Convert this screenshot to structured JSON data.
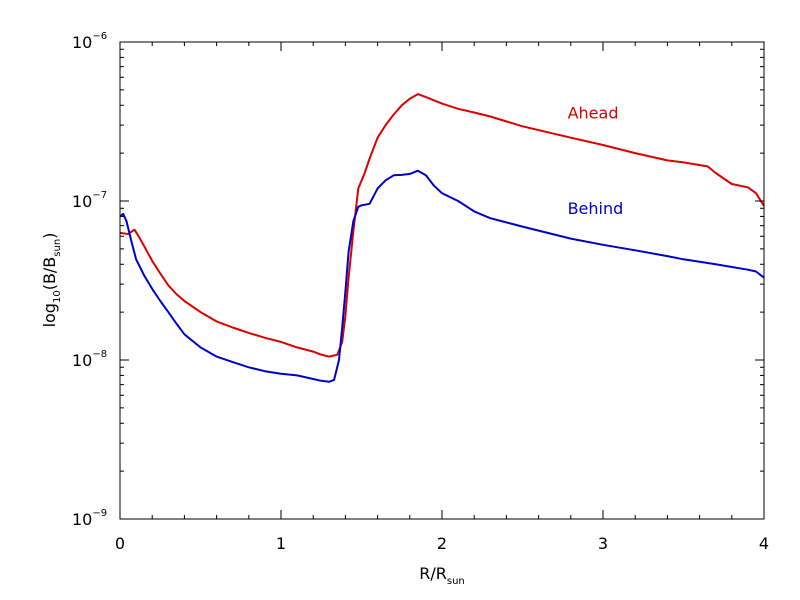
{
  "chart_data": {
    "type": "line",
    "xlabel": {
      "main": "R/R",
      "sub": "sun"
    },
    "ylabel": {
      "prefix": "log",
      "prefix_sub": "10",
      "mid": "(B/B",
      "mid_sub": "sun",
      "suffix": ")"
    },
    "xlim": [
      0,
      4
    ],
    "ylim": [
      1e-09,
      1e-06
    ],
    "yscale": "log",
    "x_ticks": [
      {
        "value": 0,
        "label": "0"
      },
      {
        "value": 1,
        "label": "1"
      },
      {
        "value": 2,
        "label": "2"
      },
      {
        "value": 3,
        "label": "3"
      },
      {
        "value": 4,
        "label": "4"
      }
    ],
    "y_ticks": [
      {
        "value": 1e-09,
        "base": "10",
        "exp": "−9"
      },
      {
        "value": 1e-08,
        "base": "10",
        "exp": "−8"
      },
      {
        "value": 1e-07,
        "base": "10",
        "exp": "−7"
      },
      {
        "value": 1e-06,
        "base": "10",
        "exp": "−6"
      }
    ],
    "grid": false,
    "series": [
      {
        "name": "Ahead",
        "color": "#dd0000",
        "x": [
          0,
          0.05,
          0.09,
          0.12,
          0.15,
          0.2,
          0.25,
          0.3,
          0.35,
          0.4,
          0.5,
          0.6,
          0.7,
          0.8,
          0.9,
          1.0,
          1.1,
          1.2,
          1.25,
          1.3,
          1.35,
          1.38,
          1.4,
          1.42,
          1.45,
          1.48,
          1.52,
          1.55,
          1.6,
          1.65,
          1.7,
          1.75,
          1.8,
          1.85,
          1.9,
          2.0,
          2.1,
          2.2,
          2.3,
          2.5,
          2.8,
          3.0,
          3.2,
          3.4,
          3.5,
          3.65,
          3.7,
          3.8,
          3.9,
          3.95,
          4.0
        ],
        "y": [
          6.3e-08,
          6.2e-08,
          6.6e-08,
          5.9e-08,
          5.2e-08,
          4.2e-08,
          3.5e-08,
          2.95e-08,
          2.6e-08,
          2.35e-08,
          2e-08,
          1.75e-08,
          1.6e-08,
          1.48e-08,
          1.38e-08,
          1.3e-08,
          1.2e-08,
          1.13e-08,
          1.08e-08,
          1.05e-08,
          1.08e-08,
          1.3e-08,
          1.9e-08,
          3.3e-08,
          6.5e-08,
          1.2e-07,
          1.5e-07,
          1.85e-07,
          2.5e-07,
          3e-07,
          3.5e-07,
          4e-07,
          4.4e-07,
          4.7e-07,
          4.5e-07,
          4.1e-07,
          3.8e-07,
          3.6e-07,
          3.4e-07,
          2.95e-07,
          2.5e-07,
          2.25e-07,
          2e-07,
          1.8e-07,
          1.75e-07,
          1.65e-07,
          1.5e-07,
          1.28e-07,
          1.22e-07,
          1.12e-07,
          9.3e-08
        ]
      },
      {
        "name": "Behind",
        "color": "#0000cc",
        "x": [
          0,
          0.02,
          0.04,
          0.07,
          0.1,
          0.15,
          0.2,
          0.25,
          0.3,
          0.35,
          0.4,
          0.5,
          0.6,
          0.7,
          0.8,
          0.9,
          1.0,
          1.1,
          1.2,
          1.25,
          1.3,
          1.33,
          1.36,
          1.38,
          1.4,
          1.42,
          1.45,
          1.48,
          1.5,
          1.55,
          1.6,
          1.65,
          1.7,
          1.75,
          1.8,
          1.85,
          1.9,
          1.95,
          2.0,
          2.1,
          2.2,
          2.3,
          2.5,
          2.8,
          3.0,
          3.2,
          3.4,
          3.5,
          3.7,
          3.9,
          3.95,
          4.0
        ],
        "y": [
          8e-08,
          8.3e-08,
          7.5e-08,
          5.6e-08,
          4.3e-08,
          3.4e-08,
          2.8e-08,
          2.35e-08,
          2e-08,
          1.7e-08,
          1.45e-08,
          1.2e-08,
          1.05e-08,
          9.7e-09,
          9e-09,
          8.5e-09,
          8.2e-09,
          8e-09,
          7.6e-09,
          7.4e-09,
          7.3e-09,
          7.5e-09,
          1e-08,
          1.6e-08,
          2.7e-08,
          4.8e-08,
          7.5e-08,
          9.2e-08,
          9.4e-08,
          9.6e-08,
          1.2e-07,
          1.35e-07,
          1.45e-07,
          1.46e-07,
          1.48e-07,
          1.55e-07,
          1.45e-07,
          1.25e-07,
          1.12e-07,
          1e-07,
          8.6e-08,
          7.8e-08,
          6.9e-08,
          5.8e-08,
          5.3e-08,
          4.9e-08,
          4.5e-08,
          4.3e-08,
          4e-08,
          3.7e-08,
          3.6e-08,
          3.3e-08
        ]
      }
    ]
  }
}
